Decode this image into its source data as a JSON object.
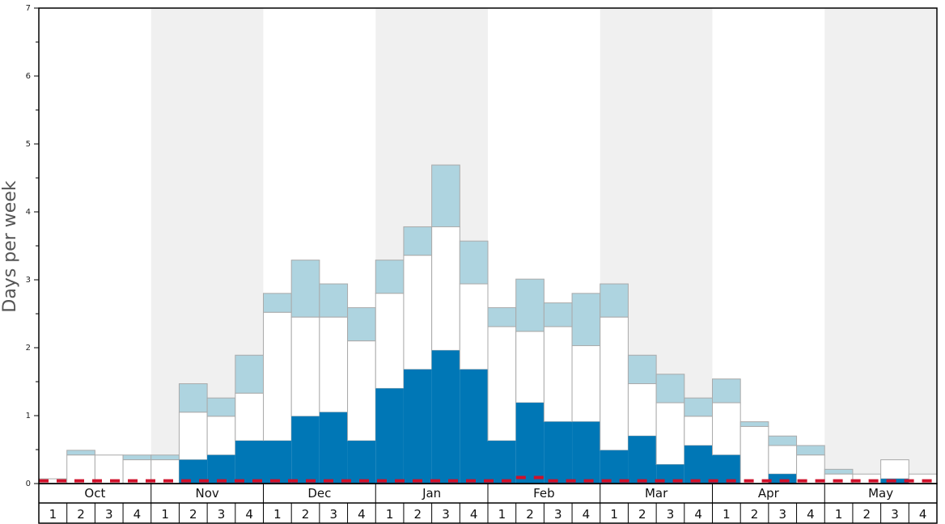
{
  "chart_data": {
    "type": "bar",
    "stacked": true,
    "ylabel": "Days per week",
    "ylim": [
      0,
      7
    ],
    "yticks": [
      "0",
      "1",
      "2",
      "3",
      "4",
      "5",
      "6",
      "7"
    ],
    "months": [
      "Oct",
      "Nov",
      "Dec",
      "Jan",
      "Feb",
      "Mar",
      "Apr",
      "May"
    ],
    "weeks": [
      "1",
      "2",
      "3",
      "4"
    ],
    "colors": {
      "dark": "#0077b6",
      "middle": "#ffffff",
      "light": "#aed4e0",
      "shade": "#f0f0f0",
      "dashed": "#d0102a"
    },
    "series": {
      "dark": [
        0,
        0,
        0,
        0,
        0,
        0.35,
        0.42,
        0.63,
        0.63,
        0.99,
        1.05,
        0.63,
        1.4,
        1.68,
        1.96,
        1.68,
        0.63,
        1.19,
        0.91,
        0.91,
        0.49,
        0.7,
        0.28,
        0.56,
        0.42,
        0,
        0.14,
        0,
        0,
        0,
        0.07,
        0
      ],
      "middle_top": [
        0.07,
        0.42,
        0.42,
        0.35,
        0.35,
        1.05,
        0.99,
        1.33,
        2.52,
        2.45,
        2.45,
        2.1,
        2.8,
        3.36,
        3.78,
        2.94,
        2.31,
        2.24,
        2.31,
        2.03,
        2.45,
        1.47,
        1.19,
        0.99,
        1.19,
        0.84,
        0.56,
        0.42,
        0.14,
        0.14,
        0.35,
        0.14
      ],
      "light_top": [
        0.07,
        0.49,
        0.42,
        0.42,
        0.42,
        1.47,
        1.26,
        1.89,
        2.8,
        3.29,
        2.94,
        2.59,
        3.29,
        3.78,
        4.69,
        3.57,
        2.59,
        3.01,
        2.66,
        2.8,
        2.94,
        1.89,
        1.61,
        1.26,
        1.54,
        0.91,
        0.7,
        0.56,
        0.21,
        0.14,
        0.35,
        0.14
      ],
      "dashed_line": [
        0.04,
        0.04,
        0.04,
        0.04,
        0.04,
        0.04,
        0.04,
        0.04,
        0.04,
        0.04,
        0.04,
        0.04,
        0.04,
        0.04,
        0.04,
        0.04,
        0.04,
        0.09,
        0.04,
        0.04,
        0.04,
        0.04,
        0.04,
        0.04,
        0.04,
        0.04,
        0.04,
        0.04,
        0.04,
        0.04,
        0.04,
        0.04
      ]
    }
  }
}
